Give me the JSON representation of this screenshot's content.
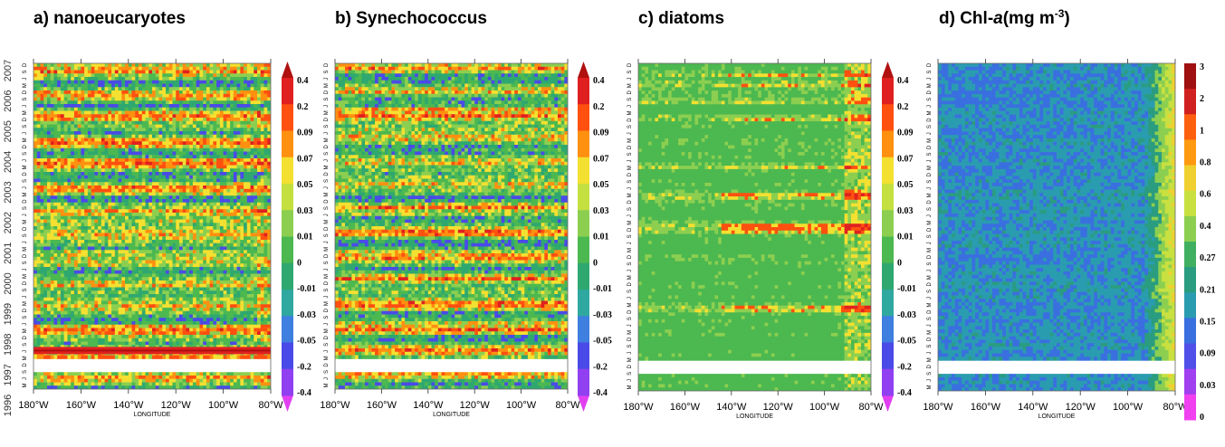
{
  "chart_data": [
    {
      "type": "heatmap",
      "panel": "a)",
      "title_label": "a)",
      "title_text": "nanoeucaryotes",
      "xlabel": "LONGITUDE",
      "ylabel": "",
      "x_ticks": [
        "180°W",
        "160°W",
        "140°W",
        "120°W",
        "100°W",
        "80°W"
      ],
      "y_years": [
        "1996",
        "1997",
        "1998",
        "1999",
        "2000",
        "2001",
        "2002",
        "2003",
        "2004",
        "2005",
        "2006",
        "2007"
      ],
      "month_labels": [
        "M",
        "J",
        "S",
        "D"
      ],
      "xlim": [
        -180,
        -80
      ],
      "colorbar": {
        "labels": [
          "0.4",
          "0.2",
          "0.09",
          "0.07",
          "0.05",
          "0.03",
          "0.01",
          "0",
          "-0.01",
          "-0.03",
          "-0.05",
          "-0.2",
          "-0.4"
        ],
        "colors": [
          "#b01010",
          "#e02020",
          "#ff5010",
          "#ff9010",
          "#f4e030",
          "#c4e040",
          "#8ccf50",
          "#4cb850",
          "#2fa870",
          "#2fa8a0",
          "#3e7fe0",
          "#4a4ae8",
          "#9040f0",
          "#e040f0"
        ]
      }
    },
    {
      "type": "heatmap",
      "panel": "b)",
      "title_label": "b)",
      "title_text": "Synechococcus",
      "xlabel": "LONGITUDE",
      "ylabel": "",
      "x_ticks": [
        "180°W",
        "160°W",
        "140°W",
        "120°W",
        "100°W",
        "80°W"
      ],
      "y_years": [],
      "month_labels": [
        "M",
        "J",
        "S",
        "D"
      ],
      "xlim": [
        -180,
        -80
      ],
      "colorbar": {
        "labels": [
          "0.4",
          "0.2",
          "0.09",
          "0.07",
          "0.05",
          "0.03",
          "0.01",
          "0",
          "-0.01",
          "-0.03",
          "-0.05",
          "-0.2",
          "-0.4"
        ],
        "colors": [
          "#b01010",
          "#e02020",
          "#ff5010",
          "#ff9010",
          "#f4e030",
          "#c4e040",
          "#8ccf50",
          "#4cb850",
          "#2fa870",
          "#2fa8a0",
          "#3e7fe0",
          "#4a4ae8",
          "#9040f0",
          "#e040f0"
        ]
      }
    },
    {
      "type": "heatmap",
      "panel": "c)",
      "title_label": "c)",
      "title_text": "diatoms",
      "xlabel": "LONGITUDE",
      "ylabel": "",
      "x_ticks": [
        "180°W",
        "160°W",
        "140°W",
        "120°W",
        "100°W",
        "80°W"
      ],
      "y_years": [],
      "month_labels": [
        "M",
        "J",
        "S",
        "D"
      ],
      "xlim": [
        -180,
        -80
      ],
      "colorbar": {
        "labels": [
          "0.4",
          "0.2",
          "0.09",
          "0.07",
          "0.05",
          "0.03",
          "0.01",
          "0",
          "-0.01",
          "-0.03",
          "-0.05",
          "-0.2",
          "-0.4"
        ],
        "colors": [
          "#b01010",
          "#e02020",
          "#ff5010",
          "#ff9010",
          "#f4e030",
          "#c4e040",
          "#8ccf50",
          "#4cb850",
          "#2fa870",
          "#2fa8a0",
          "#3e7fe0",
          "#4a4ae8",
          "#9040f0",
          "#e040f0"
        ]
      }
    },
    {
      "type": "heatmap",
      "panel": "d)",
      "title_label": "d)",
      "title_text": "Chl-a(mg m⁻³)",
      "title_parts": [
        "Chl-",
        "a",
        "(mg m",
        "-3",
        ")"
      ],
      "xlabel": "LONGITUDE",
      "ylabel": "",
      "x_ticks": [
        "180°W",
        "160°W",
        "140°W",
        "120°W",
        "100°W",
        "80°W"
      ],
      "y_years": [],
      "month_labels": [
        "M",
        "J",
        "S",
        "D"
      ],
      "xlim": [
        -180,
        -80
      ],
      "colorbar": {
        "labels": [
          "3",
          "2",
          "1",
          "0.8",
          "0.6",
          "0.4",
          "0.27",
          "0.21",
          "0.15",
          "0.09",
          "0.03",
          "0"
        ],
        "colors": [
          "#a01010",
          "#d02020",
          "#ff6010",
          "#ff9a10",
          "#f0d030",
          "#c8e040",
          "#8ccf50",
          "#40b060",
          "#2a9c80",
          "#2a9cb0",
          "#3a6fe0",
          "#5050e8",
          "#a040f0",
          "#f040f0"
        ]
      }
    }
  ]
}
